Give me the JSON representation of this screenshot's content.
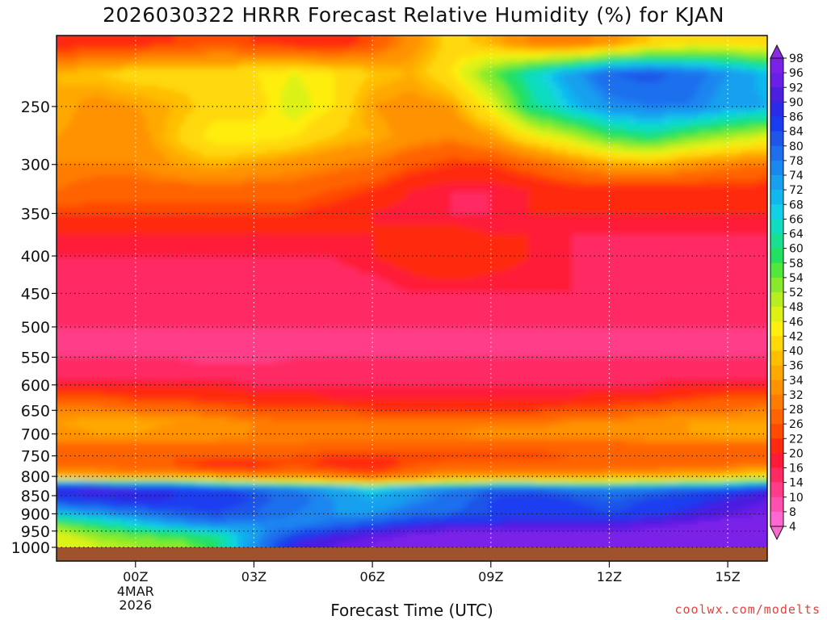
{
  "title": "2026030322 HRRR Forecast Relative Humidity (%) for KJAN",
  "credit": "coolwx.com/modelts",
  "chart_data": {
    "type": "heatmap",
    "title": "2026030322 HRRR Forecast Relative Humidity (%) for KJAN",
    "xlabel": "Forecast Time (UTC)",
    "ylabel": "",
    "x_ticks": [
      {
        "label": "00Z",
        "hour": 2,
        "sub": [
          "4MAR",
          "2026"
        ]
      },
      {
        "label": "03Z",
        "hour": 5,
        "sub": []
      },
      {
        "label": "06Z",
        "hour": 8,
        "sub": []
      },
      {
        "label": "09Z",
        "hour": 11,
        "sub": []
      },
      {
        "label": "12Z",
        "hour": 14,
        "sub": []
      },
      {
        "label": "15Z",
        "hour": 17,
        "sub": []
      }
    ],
    "xlim_hours": [
      0,
      18
    ],
    "y_ticks": [
      250,
      300,
      350,
      400,
      450,
      500,
      550,
      600,
      650,
      700,
      750,
      800,
      850,
      900,
      950,
      1000
    ],
    "ylim_hPa": [
      200,
      1000
    ],
    "y_scale": "log-pressure (inverted)",
    "grid": true,
    "legend": "right colorbar",
    "colorbar_labels": [
      98,
      96,
      92,
      90,
      86,
      84,
      80,
      78,
      74,
      72,
      68,
      66,
      64,
      60,
      58,
      54,
      52,
      48,
      46,
      42,
      40,
      36,
      34,
      32,
      28,
      26,
      22,
      20,
      16,
      14,
      10,
      8,
      4
    ],
    "colorbar_colors": [
      "#8a2be2",
      "#7b22e8",
      "#6a1fe6",
      "#4b1fe0",
      "#2a2ae8",
      "#1a3cf0",
      "#1f55e8",
      "#1e6fee",
      "#1a86f0",
      "#16a0ee",
      "#10b8ee",
      "#12d0e8",
      "#10dcc0",
      "#18e090",
      "#22e060",
      "#50e83a",
      "#88ea2a",
      "#b8ee20",
      "#dcf214",
      "#ffee10",
      "#ffd808",
      "#ffbe00",
      "#ffa800",
      "#ff9200",
      "#ff7c00",
      "#ff6400",
      "#ff4a00",
      "#ff2a10",
      "#ff1a38",
      "#ff2a64",
      "#ff3c88",
      "#ff50b0",
      "#ff68d0"
    ],
    "ground_color": "#a0522d",
    "rows": [
      {
        "p": 205,
        "rh": [
          16,
          18,
          18,
          20,
          22,
          20,
          18,
          16,
          22,
          30,
          38,
          34,
          28,
          26,
          30,
          36,
          40,
          40,
          38
        ]
      },
      {
        "p": 225,
        "rh": [
          34,
          36,
          38,
          38,
          38,
          40,
          42,
          40,
          36,
          34,
          40,
          52,
          62,
          70,
          78,
          80,
          76,
          72,
          66
        ]
      },
      {
        "p": 250,
        "rh": [
          34,
          30,
          32,
          34,
          38,
          38,
          44,
          40,
          32,
          30,
          32,
          42,
          58,
          66,
          72,
          74,
          74,
          70,
          68
        ]
      },
      {
        "p": 275,
        "rh": [
          32,
          30,
          30,
          36,
          42,
          42,
          40,
          36,
          34,
          30,
          28,
          32,
          40,
          46,
          54,
          58,
          52,
          48,
          44
        ]
      },
      {
        "p": 300,
        "rh": [
          28,
          28,
          28,
          32,
          34,
          32,
          30,
          28,
          26,
          22,
          20,
          20,
          24,
          28,
          32,
          34,
          30,
          28,
          26
        ]
      },
      {
        "p": 325,
        "rh": [
          26,
          24,
          24,
          24,
          24,
          24,
          24,
          22,
          20,
          16,
          14,
          14,
          16,
          18,
          18,
          18,
          18,
          18,
          18
        ]
      },
      {
        "p": 350,
        "rh": [
          20,
          20,
          20,
          20,
          20,
          20,
          20,
          18,
          16,
          14,
          14,
          14,
          16,
          16,
          16,
          16,
          16,
          16,
          16
        ]
      },
      {
        "p": 375,
        "rh": [
          16,
          16,
          16,
          16,
          16,
          16,
          16,
          16,
          16,
          18,
          18,
          16,
          16,
          14,
          14,
          14,
          14,
          14,
          14
        ]
      },
      {
        "p": 400,
        "rh": [
          14,
          14,
          14,
          14,
          14,
          14,
          14,
          14,
          16,
          18,
          20,
          18,
          16,
          14,
          14,
          12,
          12,
          12,
          12
        ]
      },
      {
        "p": 450,
        "rh": [
          12,
          12,
          12,
          12,
          12,
          12,
          12,
          12,
          12,
          14,
          14,
          14,
          14,
          14,
          14,
          12,
          12,
          12,
          12
        ]
      },
      {
        "p": 500,
        "rh": [
          10,
          10,
          10,
          10,
          10,
          10,
          10,
          10,
          10,
          10,
          10,
          10,
          10,
          10,
          10,
          10,
          10,
          10,
          10
        ]
      },
      {
        "p": 525,
        "rh": [
          10,
          8,
          8,
          10,
          10,
          10,
          10,
          10,
          10,
          10,
          10,
          10,
          10,
          10,
          8,
          8,
          10,
          10,
          10
        ]
      },
      {
        "p": 550,
        "rh": [
          10,
          10,
          10,
          10,
          8,
          8,
          10,
          10,
          10,
          10,
          10,
          10,
          10,
          10,
          10,
          10,
          10,
          10,
          10
        ]
      },
      {
        "p": 575,
        "rh": [
          12,
          12,
          12,
          12,
          12,
          12,
          12,
          12,
          12,
          12,
          12,
          12,
          12,
          12,
          12,
          12,
          12,
          12,
          12
        ]
      },
      {
        "p": 600,
        "rh": [
          16,
          16,
          16,
          16,
          16,
          14,
          14,
          14,
          14,
          14,
          14,
          14,
          14,
          14,
          14,
          14,
          16,
          16,
          16
        ]
      },
      {
        "p": 625,
        "rh": [
          22,
          22,
          20,
          20,
          18,
          18,
          18,
          16,
          16,
          16,
          16,
          16,
          16,
          16,
          18,
          18,
          20,
          22,
          22
        ]
      },
      {
        "p": 650,
        "rh": [
          28,
          28,
          26,
          26,
          24,
          22,
          22,
          22,
          20,
          20,
          20,
          20,
          20,
          22,
          22,
          24,
          26,
          26,
          28
        ]
      },
      {
        "p": 675,
        "rh": [
          32,
          34,
          34,
          32,
          30,
          28,
          26,
          26,
          26,
          26,
          26,
          26,
          26,
          28,
          28,
          30,
          32,
          32,
          32
        ]
      },
      {
        "p": 700,
        "rh": [
          30,
          32,
          32,
          30,
          30,
          28,
          28,
          28,
          28,
          28,
          28,
          30,
          30,
          30,
          30,
          30,
          32,
          34,
          34
        ]
      },
      {
        "p": 725,
        "rh": [
          26,
          26,
          26,
          26,
          26,
          26,
          26,
          24,
          24,
          24,
          24,
          24,
          24,
          24,
          24,
          26,
          26,
          26,
          26
        ]
      },
      {
        "p": 750,
        "rh": [
          22,
          22,
          22,
          22,
          22,
          22,
          22,
          20,
          20,
          20,
          20,
          20,
          20,
          22,
          22,
          22,
          22,
          22,
          22
        ]
      },
      {
        "p": 775,
        "rh": [
          26,
          26,
          24,
          22,
          18,
          18,
          22,
          18,
          16,
          22,
          24,
          24,
          24,
          24,
          24,
          24,
          26,
          26,
          28
        ]
      },
      {
        "p": 800,
        "rh": [
          30,
          30,
          30,
          30,
          30,
          28,
          28,
          28,
          24,
          28,
          30,
          30,
          30,
          30,
          32,
          32,
          34,
          36,
          40
        ]
      },
      {
        "p": 815,
        "rh": [
          72,
          66,
          60,
          60,
          54,
          50,
          46,
          42,
          36,
          42,
          46,
          50,
          50,
          48,
          48,
          50,
          52,
          56,
          60
        ]
      },
      {
        "p": 830,
        "rh": [
          86,
          88,
          86,
          84,
          82,
          78,
          74,
          70,
          64,
          70,
          74,
          78,
          78,
          76,
          74,
          76,
          78,
          80,
          84
        ]
      },
      {
        "p": 860,
        "rh": [
          82,
          84,
          86,
          84,
          82,
          80,
          76,
          72,
          68,
          72,
          76,
          80,
          82,
          80,
          78,
          80,
          82,
          86,
          90
        ]
      },
      {
        "p": 900,
        "rh": [
          66,
          70,
          74,
          78,
          80,
          78,
          74,
          72,
          72,
          76,
          78,
          80,
          82,
          82,
          80,
          82,
          86,
          90,
          92
        ]
      },
      {
        "p": 930,
        "rh": [
          52,
          58,
          64,
          70,
          74,
          72,
          72,
          76,
          80,
          84,
          86,
          86,
          88,
          88,
          88,
          90,
          92,
          94,
          94
        ]
      },
      {
        "p": 960,
        "rh": [
          44,
          50,
          54,
          56,
          60,
          70,
          80,
          86,
          90,
          92,
          94,
          94,
          94,
          94,
          94,
          94,
          94,
          96,
          96
        ]
      },
      {
        "p": 990,
        "rh": [
          42,
          46,
          48,
          50,
          56,
          72,
          86,
          90,
          92,
          94,
          96,
          96,
          96,
          96,
          96,
          96,
          96,
          96,
          96
        ]
      }
    ]
  }
}
